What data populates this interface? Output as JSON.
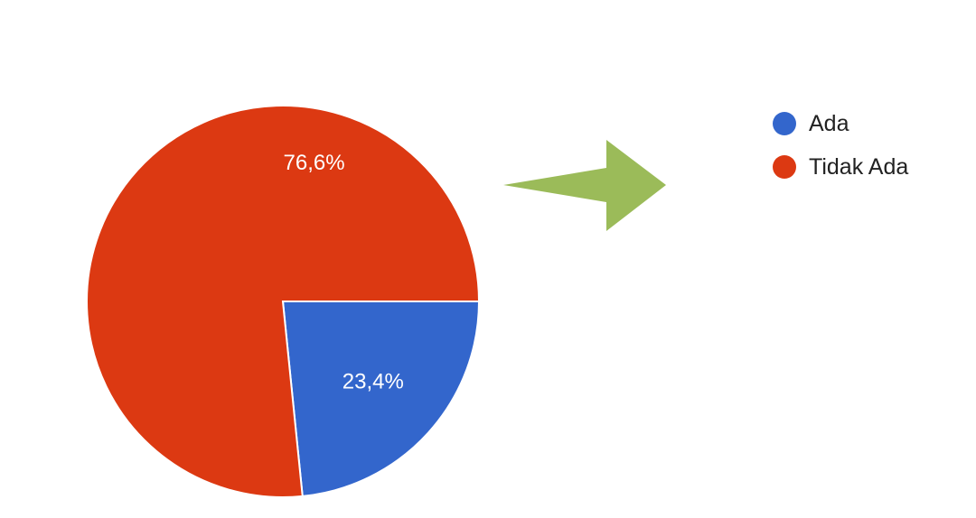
{
  "chart_data": {
    "type": "pie",
    "title": "",
    "unit": "%",
    "series": [
      {
        "name": "Ada",
        "value": 23.4,
        "label": "23,4%",
        "color": "#3366CC"
      },
      {
        "name": "Tidak Ada",
        "value": 76.6,
        "label": "76,6%",
        "color": "#DC3912"
      }
    ],
    "start_direction": "east",
    "legend_position": "top-right"
  },
  "annotation": {
    "type": "arrow",
    "direction": "right",
    "color": "#9BBB59"
  }
}
